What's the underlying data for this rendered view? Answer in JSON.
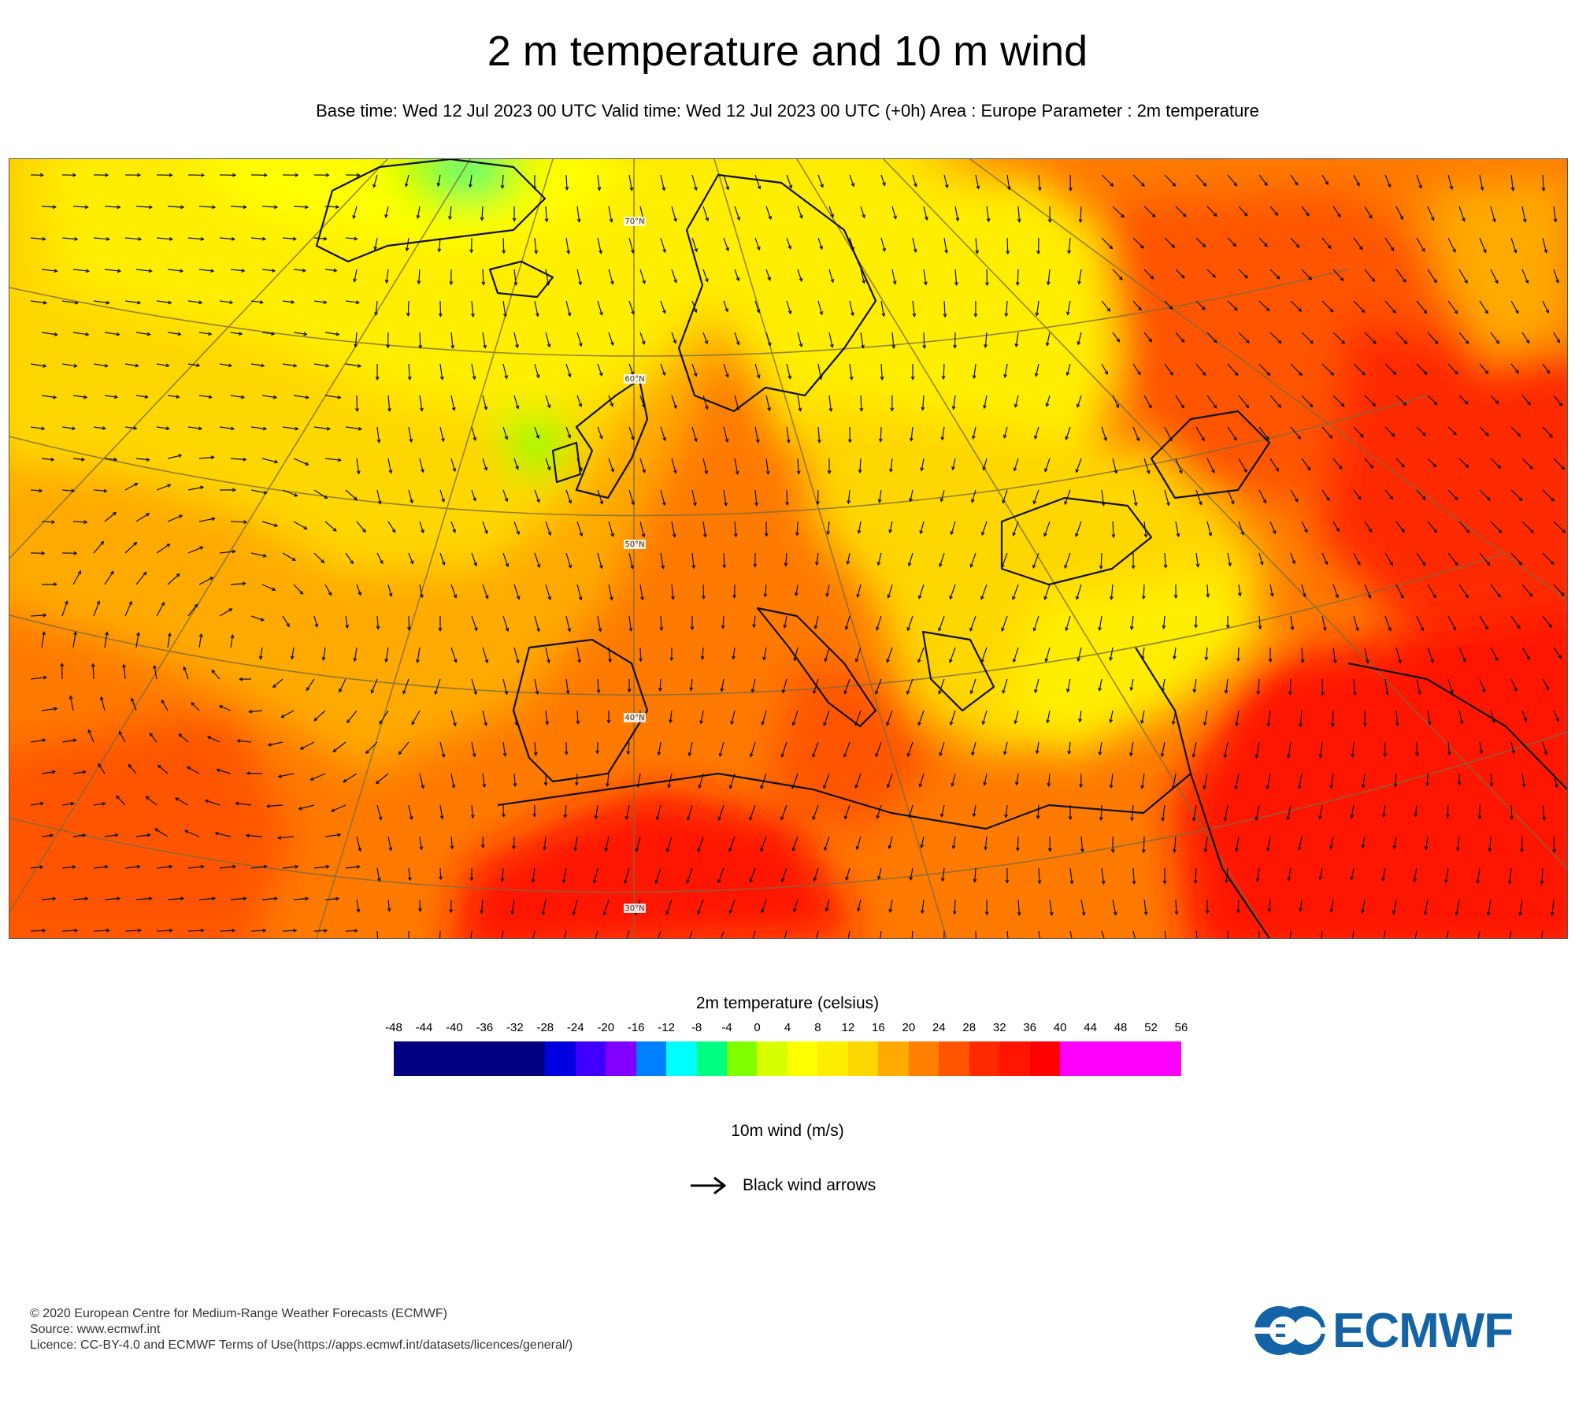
{
  "header": {
    "title": "2 m temperature and 10 m wind",
    "subtitle": "Base time: Wed 12 Jul 2023 00 UTC Valid time: Wed 12 Jul 2023 00 UTC (+0h) Area : Europe Parameter : 2m temperature"
  },
  "map": {
    "latitude_labels": [
      "70°N",
      "60°N",
      "50°N",
      "40°N",
      "30°N"
    ],
    "coastline_color": "#111111",
    "graticule_color": "#7a6a40",
    "wind_arrow_color": "#111111"
  },
  "legend": {
    "title": "2m temperature (celsius)",
    "ticks": [
      "-48",
      "-44",
      "-40",
      "-36",
      "-32",
      "-28",
      "-24",
      "-20",
      "-16",
      "-12",
      "-8",
      "-4",
      "0",
      "4",
      "8",
      "12",
      "16",
      "20",
      "24",
      "28",
      "32",
      "36",
      "40",
      "44",
      "48",
      "52",
      "56"
    ],
    "segments": [
      {
        "from": -48,
        "to": -28,
        "color": "#000080"
      },
      {
        "from": -28,
        "to": -24,
        "color": "#0000e0"
      },
      {
        "from": -24,
        "to": -20,
        "color": "#4000ff"
      },
      {
        "from": -20,
        "to": -16,
        "color": "#8000ff"
      },
      {
        "from": -16,
        "to": -12,
        "color": "#0080ff"
      },
      {
        "from": -12,
        "to": -8,
        "color": "#00ffff"
      },
      {
        "from": -8,
        "to": -4,
        "color": "#00ff80"
      },
      {
        "from": -4,
        "to": 0,
        "color": "#80ff00"
      },
      {
        "from": 0,
        "to": 4,
        "color": "#d8ff00"
      },
      {
        "from": 4,
        "to": 8,
        "color": "#ffff00"
      },
      {
        "from": 8,
        "to": 12,
        "color": "#ffee00"
      },
      {
        "from": 12,
        "to": 16,
        "color": "#ffd700"
      },
      {
        "from": 16,
        "to": 20,
        "color": "#ffaa00"
      },
      {
        "from": 20,
        "to": 24,
        "color": "#ff8000"
      },
      {
        "from": 24,
        "to": 28,
        "color": "#ff5500"
      },
      {
        "from": 28,
        "to": 32,
        "color": "#ff2a00"
      },
      {
        "from": 32,
        "to": 36,
        "color": "#ff1500"
      },
      {
        "from": 36,
        "to": 40,
        "color": "#ff0000"
      },
      {
        "from": 40,
        "to": 56,
        "color": "#ff00ff"
      }
    ]
  },
  "wind_legend": {
    "title": "10m wind (m/s)",
    "label": "Black wind arrows"
  },
  "footer": {
    "copyright": "© 2020 European Centre for Medium-Range Weather Forecasts (ECMWF)",
    "source": "Source: www.ecmwf.int",
    "licence": "Licence: CC-BY-4.0 and ECMWF Terms of Use(https://apps.ecmwf.int/datasets/licences/general/)"
  },
  "logo": {
    "text": "ECMWF",
    "color": "#1464a5"
  }
}
